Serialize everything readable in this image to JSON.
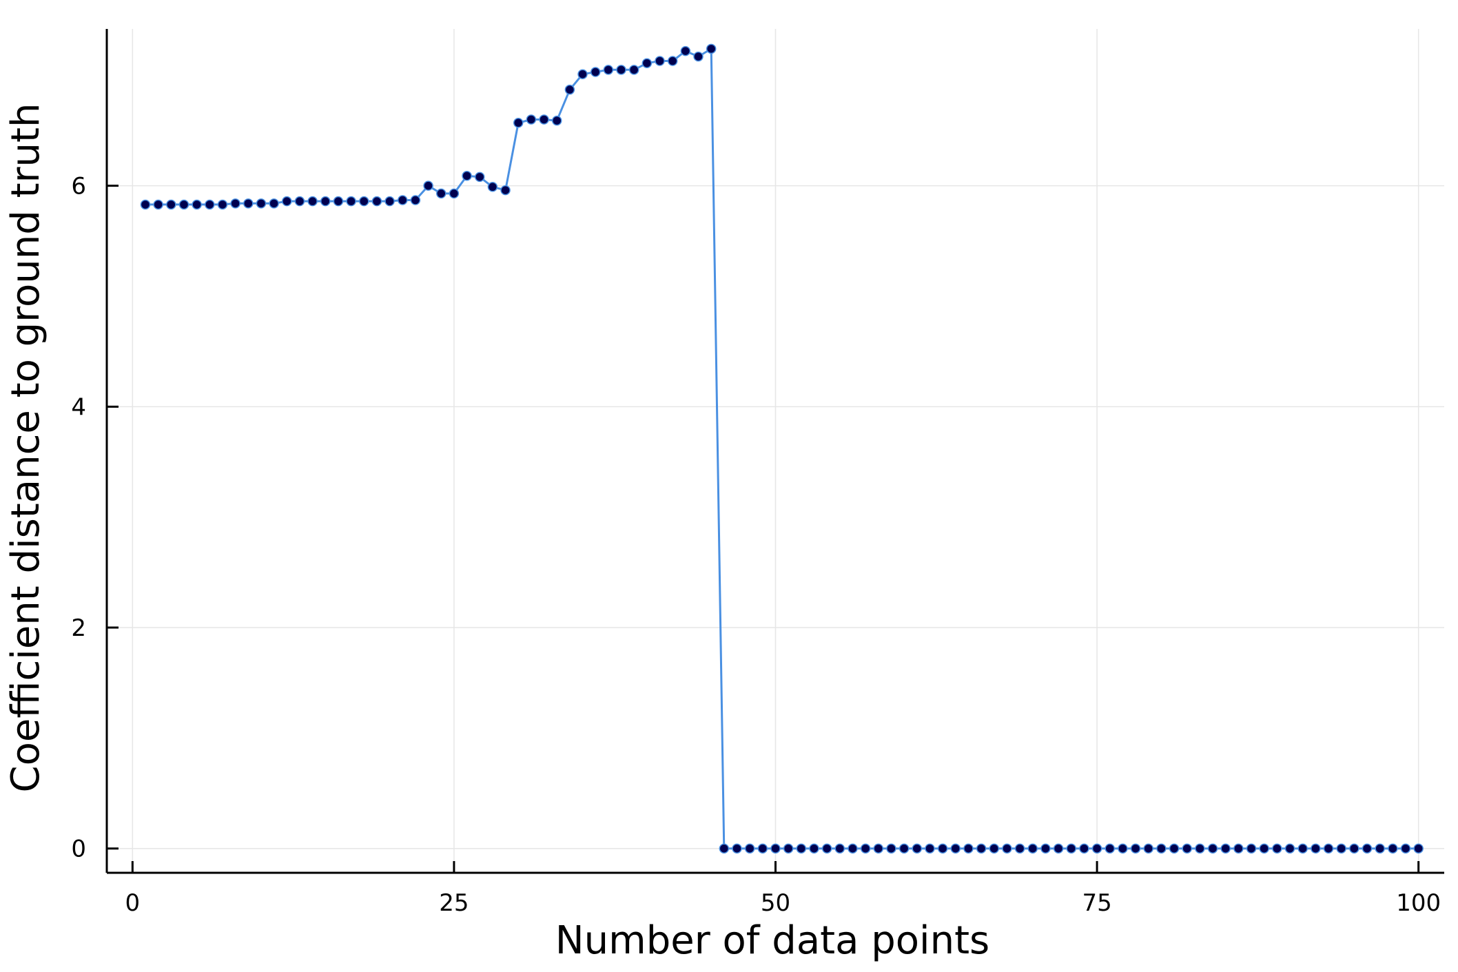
{
  "chart_data": {
    "type": "line",
    "title": "",
    "xlabel": "Number of data points",
    "ylabel": "Coefficient distance to ground truth",
    "xlim": [
      -2,
      102
    ],
    "ylim": [
      -0.22,
      7.42
    ],
    "xticks": [
      0,
      25,
      50,
      75,
      100
    ],
    "xtick_labels": [
      "0",
      "25",
      "50",
      "75",
      "100"
    ],
    "yticks": [
      0,
      2,
      4,
      6
    ],
    "ytick_labels": [
      "0",
      "2",
      "4",
      "6"
    ],
    "grid": true,
    "legend": "none",
    "line_color": "#4a90e2",
    "marker_color": "#00004f",
    "series": [
      {
        "x": [
          1,
          2,
          3,
          4,
          5,
          6,
          7,
          8,
          9,
          10,
          11,
          12,
          13,
          14,
          15,
          16,
          17,
          18,
          19,
          20,
          21,
          22,
          23,
          24,
          25,
          26,
          27,
          28,
          29,
          30,
          31,
          32,
          33,
          34,
          35,
          36,
          37,
          38,
          39,
          40,
          41,
          42,
          43,
          44,
          45,
          46,
          47,
          48,
          49,
          50,
          51,
          52,
          53,
          54,
          55,
          56,
          57,
          58,
          59,
          60,
          61,
          62,
          63,
          64,
          65,
          66,
          67,
          68,
          69,
          70,
          71,
          72,
          73,
          74,
          75,
          76,
          77,
          78,
          79,
          80,
          81,
          82,
          83,
          84,
          85,
          86,
          87,
          88,
          89,
          90,
          91,
          92,
          93,
          94,
          95,
          96,
          97,
          98,
          99,
          100
        ],
        "values": [
          5.83,
          5.83,
          5.83,
          5.83,
          5.83,
          5.83,
          5.83,
          5.84,
          5.84,
          5.84,
          5.84,
          5.86,
          5.86,
          5.86,
          5.86,
          5.86,
          5.86,
          5.86,
          5.86,
          5.86,
          5.87,
          5.87,
          6.0,
          5.93,
          5.93,
          6.09,
          6.08,
          5.99,
          5.96,
          6.57,
          6.6,
          6.6,
          6.59,
          6.87,
          7.01,
          7.03,
          7.05,
          7.05,
          7.05,
          7.11,
          7.13,
          7.13,
          7.22,
          7.17,
          7.24,
          0.0,
          0.0,
          0.0,
          0.0,
          0.0,
          0.0,
          0.0,
          0.0,
          0.0,
          0.0,
          0.0,
          0.0,
          0.0,
          0.0,
          0.0,
          0.0,
          0.0,
          0.0,
          0.0,
          0.0,
          0.0,
          0.0,
          0.0,
          0.0,
          0.0,
          0.0,
          0.0,
          0.0,
          0.0,
          0.0,
          0.0,
          0.0,
          0.0,
          0.0,
          0.0,
          0.0,
          0.0,
          0.0,
          0.0,
          0.0,
          0.0,
          0.0,
          0.0,
          0.0,
          0.0,
          0.0,
          0.0,
          0.0,
          0.0,
          0.0,
          0.0,
          0.0,
          0.0,
          0.0,
          0.0
        ]
      }
    ]
  }
}
